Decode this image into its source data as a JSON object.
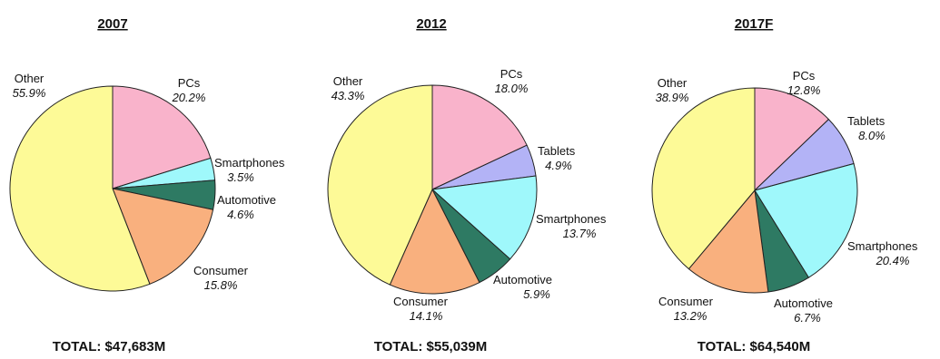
{
  "chart_data": [
    {
      "type": "pie",
      "title": "2007",
      "total": "TOTAL: $47,683M",
      "slices": [
        {
          "name": "PCs",
          "pct_label": "20.2%",
          "value": 20.2,
          "color": "#f9b3cb"
        },
        {
          "name": "Smartphones",
          "pct_label": "3.5%",
          "value": 3.5,
          "color": "#9ff8fb"
        },
        {
          "name": "Automotive",
          "pct_label": "4.6%",
          "value": 4.6,
          "color": "#2e7a63"
        },
        {
          "name": "Consumer",
          "pct_label": "15.8%",
          "value": 15.8,
          "color": "#f9b07e"
        },
        {
          "name": "Other",
          "pct_label": "55.9%",
          "value": 55.9,
          "color": "#fdfa97"
        }
      ]
    },
    {
      "type": "pie",
      "title": "2012",
      "total": "TOTAL: $55,039M",
      "slices": [
        {
          "name": "PCs",
          "pct_label": "18.0%",
          "value": 18.0,
          "color": "#f9b3cb"
        },
        {
          "name": "Tablets",
          "pct_label": "4.9%",
          "value": 4.9,
          "color": "#b3b3f6"
        },
        {
          "name": "Smartphones",
          "pct_label": "13.7%",
          "value": 13.7,
          "color": "#9ff8fb"
        },
        {
          "name": "Automotive",
          "pct_label": "5.9%",
          "value": 5.9,
          "color": "#2e7a63"
        },
        {
          "name": "Consumer",
          "pct_label": "14.1%",
          "value": 14.1,
          "color": "#f9b07e"
        },
        {
          "name": "Other",
          "pct_label": "43.3%",
          "value": 43.3,
          "color": "#fdfa97"
        }
      ]
    },
    {
      "type": "pie",
      "title": "2017F",
      "total": "TOTAL: $64,540M",
      "slices": [
        {
          "name": "PCs",
          "pct_label": "12.8%",
          "value": 12.8,
          "color": "#f9b3cb"
        },
        {
          "name": "Tablets",
          "pct_label": "8.0%",
          "value": 8.0,
          "color": "#b3b3f6"
        },
        {
          "name": "Smartphones",
          "pct_label": "20.4%",
          "value": 20.4,
          "color": "#9ff8fb"
        },
        {
          "name": "Automotive",
          "pct_label": "6.7%",
          "value": 6.7,
          "color": "#2e7a63"
        },
        {
          "name": "Consumer",
          "pct_label": "13.2%",
          "value": 13.2,
          "color": "#f9b07e"
        },
        {
          "name": "Other",
          "pct_label": "38.9%",
          "value": 38.9,
          "color": "#fdfa97"
        }
      ]
    }
  ]
}
